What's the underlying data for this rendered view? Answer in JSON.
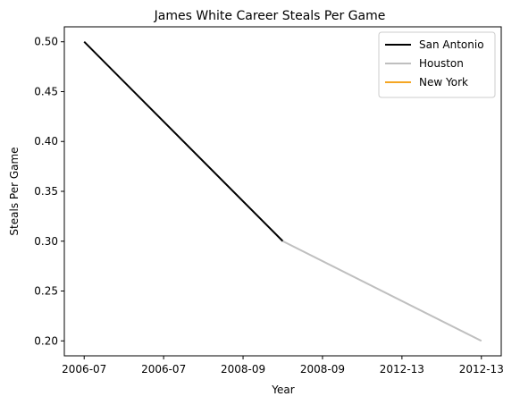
{
  "chart_data": {
    "type": "line",
    "title": "James White  Career Steals Per Game",
    "xlabel": "Year",
    "ylabel": "Steals Per Game",
    "x_tick_labels": [
      "2006-07",
      "2006-07",
      "2008-09",
      "2008-09",
      "2012-13",
      "2012-13"
    ],
    "xlim": [
      -0.25,
      5.25
    ],
    "ylim": [
      0.185,
      0.515
    ],
    "y_ticks": [
      0.2,
      0.25,
      0.3,
      0.35,
      0.4,
      0.45,
      0.5
    ],
    "y_tick_labels": [
      "0.20",
      "0.25",
      "0.30",
      "0.35",
      "0.40",
      "0.45",
      "0.50"
    ],
    "grid": false,
    "legend_position": "top-right",
    "series": [
      {
        "name": "San Antonio",
        "color": "#000000",
        "x": [
          0,
          2.5
        ],
        "y": [
          0.5,
          0.3
        ]
      },
      {
        "name": "Houston",
        "color": "#bfbfbf",
        "x": [
          2.5,
          5
        ],
        "y": [
          0.3,
          0.2
        ]
      },
      {
        "name": "New York",
        "color": "#f5a623",
        "x": [],
        "y": []
      }
    ]
  }
}
